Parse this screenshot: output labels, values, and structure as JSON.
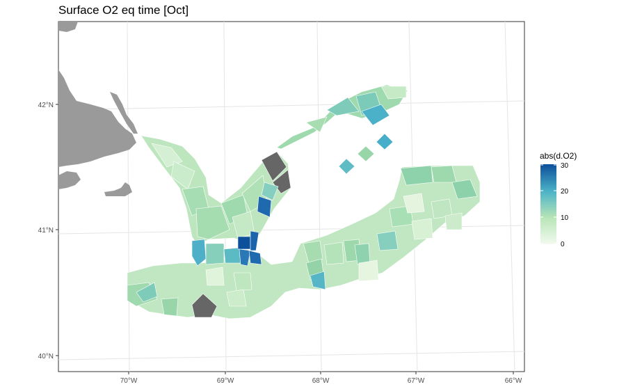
{
  "title": "Surface O2 eq time [Oct]",
  "x_ticks": [
    "70°W",
    "69°W",
    "68°W",
    "67°W",
    "66°W"
  ],
  "y_ticks": [
    "42°N",
    "41°N",
    "40°N"
  ],
  "legend": {
    "title": "abs(d.O2)",
    "labels": [
      "30",
      "20",
      "10",
      "0"
    ],
    "min": 0,
    "max": 30
  },
  "colors": {
    "land": "#9a9a9a",
    "na": "#666666",
    "scale_low": "#edf8e9",
    "scale_mid": "#7fcdbb",
    "scale_high": "#0c4f9a"
  }
}
